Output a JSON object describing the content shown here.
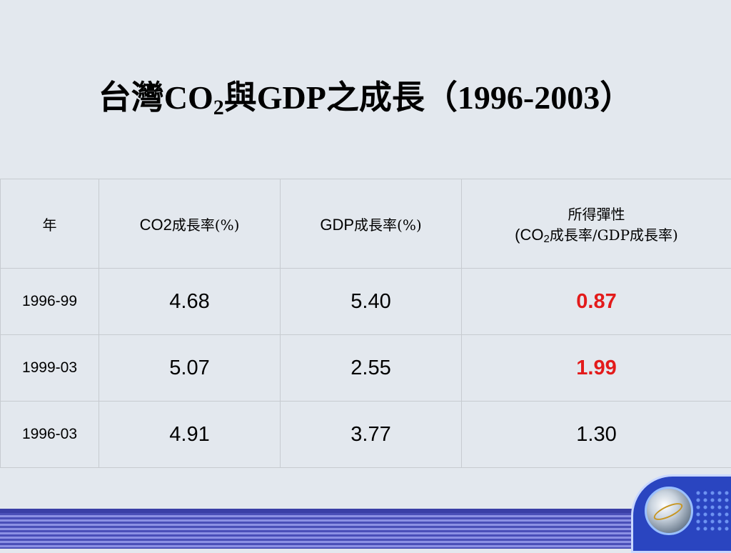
{
  "title": {
    "pre": "台灣CO",
    "sub": "2",
    "post": "與GDP之成長（1996-2003）"
  },
  "table": {
    "headers": {
      "year": "年",
      "co2_prefix": "CO2",
      "co2_suffix": "成長率(%)",
      "gdp_prefix": "GDP",
      "gdp_suffix": "成長率(%)",
      "elasticity_line1": "所得彈性",
      "elasticity_line2_pre": "(CO",
      "elasticity_line2_sub": "2",
      "elasticity_line2_post": "成長率/GDP成長率)"
    },
    "rows": [
      {
        "period": "1996-99",
        "co2": "4.68",
        "gdp": "5.40",
        "elasticity": "0.87"
      },
      {
        "period": "1999-03",
        "co2": "5.07",
        "gdp": "2.55",
        "elasticity": "1.99"
      },
      {
        "period": "1996-03",
        "co2": "4.91",
        "gdp": "3.77",
        "elasticity": "1.30"
      }
    ]
  },
  "colors": {
    "background": "#e3e8ee",
    "highlight": "#e31b1b",
    "footer_bar": "#4a4fb8",
    "logo_panel": "#2a45c0"
  },
  "icons": {
    "logo": "globe-logo-icon"
  }
}
